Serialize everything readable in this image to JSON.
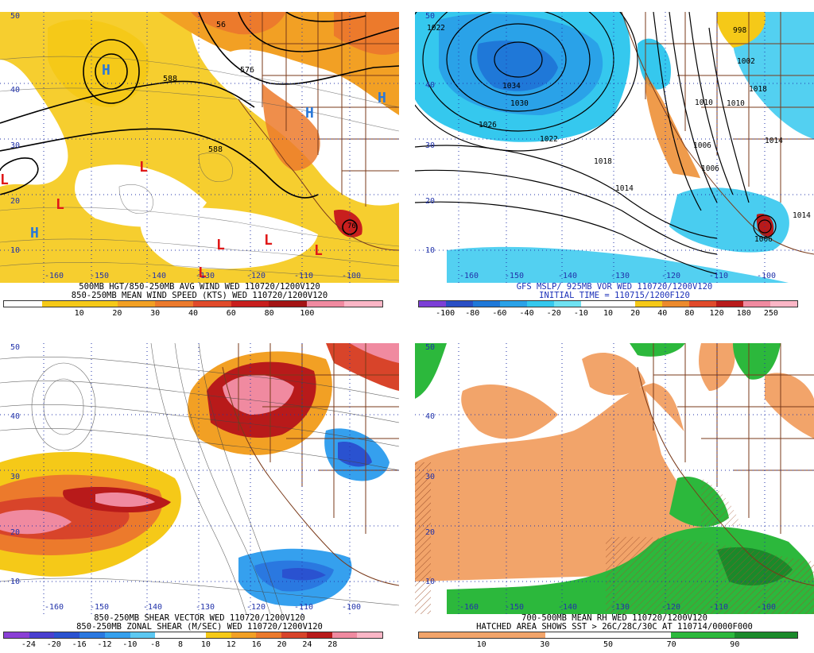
{
  "panels": [
    {
      "id": "p0",
      "lat_labels": [
        "50",
        "40",
        "30",
        "20",
        "10"
      ],
      "lon_labels": [
        "-160",
        "-150",
        "-140",
        "-130",
        "-120",
        "-110",
        "-100"
      ],
      "caption_lines": [
        "500MB HGT/850-250MB AVG WIND WED 110720/1200V120",
        "850-250MB MEAN WIND SPEED (KTS) WED 110720/1200V120"
      ],
      "contour_labels": [
        "588",
        "576",
        "56",
        "588",
        "76"
      ],
      "markers": [
        "H",
        "H",
        "H",
        "L",
        "L",
        "L",
        "L",
        "L",
        "L",
        "L",
        "H"
      ],
      "colorbar_labels": [
        "10",
        "20",
        "30",
        "40",
        "60",
        "80",
        "100"
      ],
      "colorbar_colors": [
        "#ffffff",
        "#f5c918",
        "#f5c918",
        "#f2a024",
        "#ec7a2c",
        "#e04a2a",
        "#c81f1e",
        "#a41414",
        "#f08aa0",
        "#fbb6c6"
      ]
    },
    {
      "id": "p1",
      "lat_labels": [
        "50",
        "40",
        "30",
        "20",
        "10"
      ],
      "lon_labels": [
        "-160",
        "-150",
        "-140",
        "-130",
        "-120",
        "-110",
        "-100"
      ],
      "caption_lines": [
        "GFS MSLP/ 925MB VOR WED 110720/1200V120",
        "INITIAL TIME = 110715/1200F120"
      ],
      "contour_labels": [
        "1022",
        "1034",
        "1030",
        "1026",
        "1022",
        "1018",
        "1014",
        "1010",
        "1006",
        "1002",
        "1006",
        "998",
        "1010",
        "1014",
        "1018",
        "1014",
        "1006"
      ],
      "colorbar_labels": [
        "-100",
        "-80",
        "-60",
        "-40",
        "-20",
        "-10",
        "10",
        "20",
        "40",
        "80",
        "120",
        "180",
        "250"
      ],
      "colorbar_colors": [
        "#7c3fd6",
        "#2a4fc4",
        "#1f78d8",
        "#2aa2e8",
        "#35c8ee",
        "#6fe2f2",
        "#ffffff",
        "#ffffff",
        "#f5c918",
        "#ec8a2c",
        "#e04a2a",
        "#b81a1a",
        "#f08aa0",
        "#fbb6c6"
      ]
    },
    {
      "id": "p2",
      "lat_labels": [
        "50",
        "40",
        "30",
        "20",
        "10"
      ],
      "lon_labels": [
        "-160",
        "-150",
        "-140",
        "-130",
        "-120",
        "-110",
        "-100"
      ],
      "caption_lines": [
        "850-250MB SHEAR VECTOR WED 110720/1200V120",
        "850-250MB ZONAL SHEAR (M/SEC) WED 110720/1200V120"
      ],
      "colorbar_labels": [
        "-24",
        "-20",
        "-16",
        "-12",
        "-10",
        "-8",
        "8",
        "10",
        "12",
        "16",
        "20",
        "24",
        "28"
      ],
      "colorbar_colors": [
        "#8a3fd6",
        "#4a3fd0",
        "#2a52d0",
        "#2a78e0",
        "#35a0ee",
        "#5cc8f2",
        "#ffffff",
        "#ffffff",
        "#f5c918",
        "#f2a024",
        "#ec7a2c",
        "#d8442a",
        "#b81a1a",
        "#f08aa0",
        "#fbb6c6"
      ]
    },
    {
      "id": "p3",
      "lat_labels": [
        "50",
        "40",
        "30",
        "20",
        "10"
      ],
      "lon_labels": [
        "-160",
        "-150",
        "-140",
        "-130",
        "-120",
        "-110",
        "-100"
      ],
      "caption_lines": [
        "700-500MB MEAN RH WED 110720/1200V120",
        "HATCHED AREA SHOWS SST > 26C/28C/30C AT 110714/0000F000"
      ],
      "colorbar_labels": [
        "10",
        "30",
        "50",
        "70",
        "90"
      ],
      "colorbar_colors": [
        "#f2a46a",
        "#f2a46a",
        "#ffffff",
        "#ffffff",
        "#2cb83c",
        "#1a8a2a"
      ]
    }
  ]
}
